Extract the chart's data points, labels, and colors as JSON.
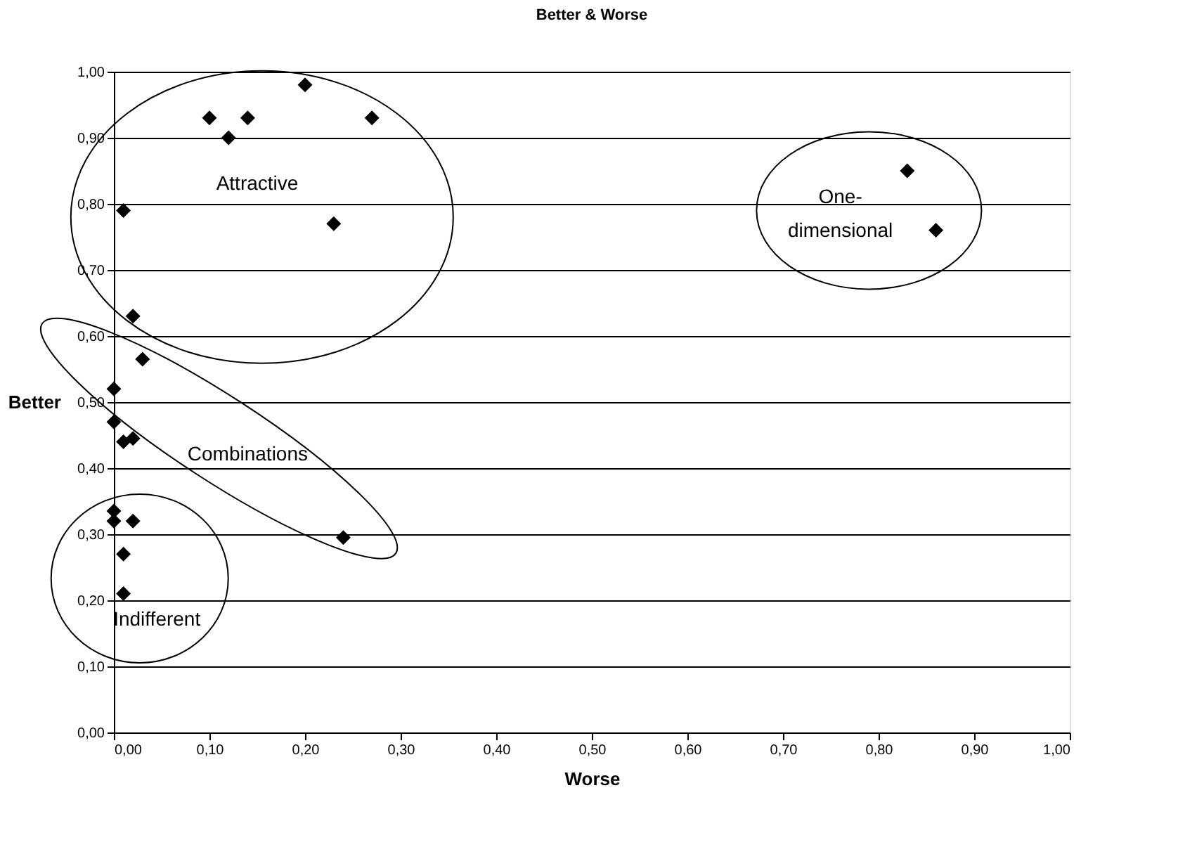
{
  "chart_data": {
    "type": "scatter",
    "title": "Better & Worse",
    "xlabel": "Worse",
    "ylabel": "Better",
    "x": [
      0.1,
      0.12,
      0.14,
      0.2,
      0.27,
      0.01,
      0.23,
      0.02,
      0.03,
      0.0,
      0.0,
      0.01,
      0.02,
      0.0,
      0.0,
      0.02,
      0.01,
      0.01,
      0.24,
      0.83,
      0.86
    ],
    "series": [
      {
        "color": "#000000",
        "values": [
          0.93,
          0.9,
          0.93,
          0.98,
          0.93,
          0.79,
          0.77,
          0.63,
          0.565,
          0.52,
          0.47,
          0.44,
          0.445,
          0.335,
          0.32,
          0.32,
          0.27,
          0.21,
          0.295,
          0.85,
          0.76
        ]
      }
    ],
    "marker": "diamond",
    "grid": "y",
    "xlim": [
      0,
      1
    ],
    "ylim": [
      0,
      1
    ],
    "xticks": [
      {
        "value": 0,
        "label": "0,00"
      },
      {
        "value": 0.1,
        "label": "0,10"
      },
      {
        "value": 0.2,
        "label": "0,20"
      },
      {
        "value": 0.3,
        "label": "0,30"
      },
      {
        "value": 0.4,
        "label": "0,40"
      },
      {
        "value": 0.5,
        "label": "0,50"
      },
      {
        "value": 0.6,
        "label": "0,60"
      },
      {
        "value": 0.7,
        "label": "0,70"
      },
      {
        "value": 0.8,
        "label": "0,80"
      },
      {
        "value": 0.9,
        "label": "0,90"
      },
      {
        "value": 1,
        "label": "1,00"
      }
    ],
    "yticks": [
      {
        "value": 0,
        "label": "0,00"
      },
      {
        "value": 0.1,
        "label": "0,10"
      },
      {
        "value": 0.2,
        "label": "0,20"
      },
      {
        "value": 0.3,
        "label": "0,30"
      },
      {
        "value": 0.4,
        "label": "0,40"
      },
      {
        "value": 0.5,
        "label": "0,50"
      },
      {
        "value": 0.6,
        "label": "0,60"
      },
      {
        "value": 0.7,
        "label": "0,70"
      },
      {
        "value": 0.8,
        "label": "0,80"
      },
      {
        "value": 0.9,
        "label": "0,90"
      },
      {
        "value": 1,
        "label": "1,00"
      }
    ],
    "annotations": [
      "Attractive",
      "Combinations",
      "Indifferent",
      "One-\ndimensional"
    ]
  }
}
